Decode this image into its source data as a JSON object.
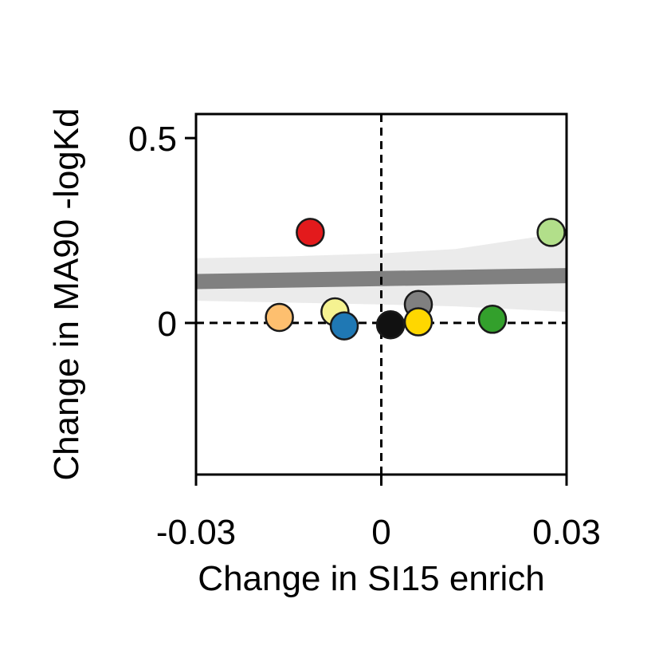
{
  "chart_data": {
    "type": "scatter",
    "title": "",
    "xlabel": "Change in SI15 enrich",
    "ylabel": "Change in MA90 -logKd",
    "xlim": [
      -0.03,
      0.03
    ],
    "ylim": [
      -0.41,
      0.565
    ],
    "x_ticks": [
      {
        "value": -0.03,
        "label": "-0.03"
      },
      {
        "value": 0,
        "label": "0"
      },
      {
        "value": 0.03,
        "label": "0.03"
      }
    ],
    "y_ticks": [
      {
        "value": 0.5,
        "label": "0.5"
      },
      {
        "value": 0,
        "label": "0"
      }
    ],
    "reference_lines": {
      "x": 0,
      "y": 0,
      "style": "dashed"
    },
    "regression": {
      "x_range": [
        -0.03,
        0.03
      ],
      "fit_line": [
        [
          -0.03,
          0.112
        ],
        [
          0.03,
          0.128
        ]
      ],
      "ci_band": {
        "x": [
          -0.03,
          -0.015,
          0.0,
          0.012,
          0.03
        ],
        "upper": [
          0.175,
          0.18,
          0.188,
          0.2,
          0.245
        ],
        "lower": [
          0.06,
          0.055,
          0.05,
          0.045,
          0.03
        ]
      },
      "line_color": "#808080",
      "band_color": "#ebebeb"
    },
    "points": [
      {
        "x": -0.0115,
        "y": 0.245,
        "color": "#e31a1c"
      },
      {
        "x": 0.0275,
        "y": 0.245,
        "color": "#b2df8a"
      },
      {
        "x": 0.006,
        "y": 0.05,
        "color": "#808080"
      },
      {
        "x": -0.0165,
        "y": 0.015,
        "color": "#fdbf6f"
      },
      {
        "x": -0.0075,
        "y": 0.03,
        "color": "#f5f291"
      },
      {
        "x": -0.006,
        "y": -0.008,
        "color": "#1f78b4"
      },
      {
        "x": 0.0015,
        "y": -0.005,
        "color": "#111111"
      },
      {
        "x": 0.006,
        "y": 0.003,
        "color": "#ffd700"
      },
      {
        "x": 0.018,
        "y": 0.01,
        "color": "#33a02c"
      }
    ]
  }
}
